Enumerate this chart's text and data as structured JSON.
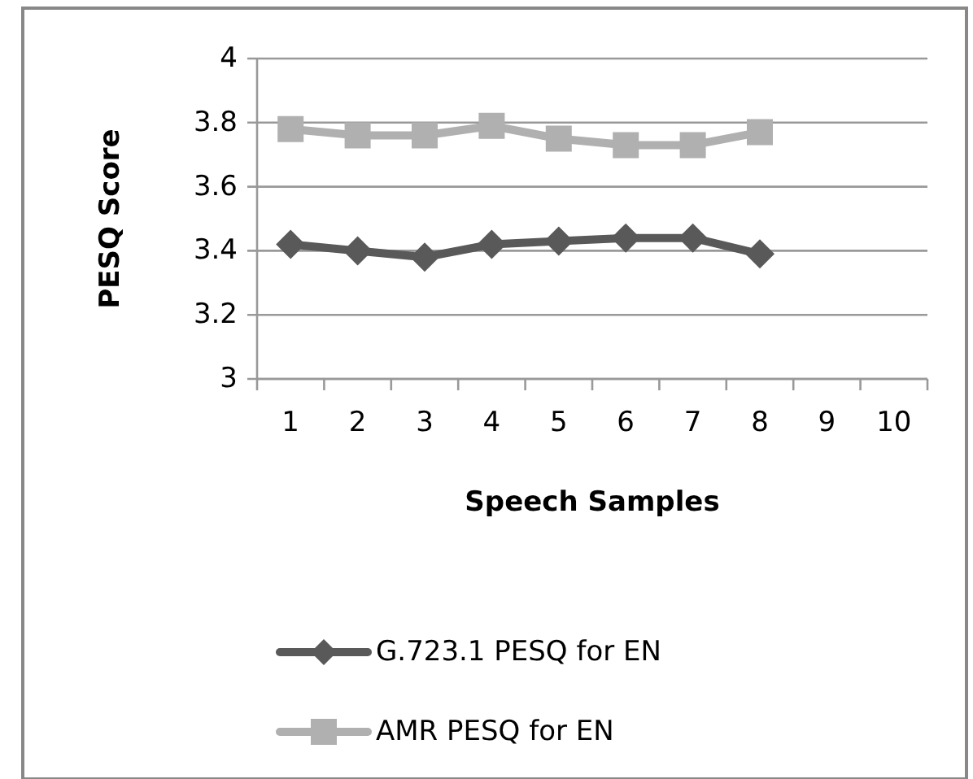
{
  "chart_data": {
    "type": "line",
    "xlabel": "Speech Samples",
    "ylabel": "PESQ Score",
    "categories": [
      "1",
      "2",
      "3",
      "4",
      "5",
      "6",
      "7",
      "8",
      "9",
      "10"
    ],
    "series": [
      {
        "name": "G.723.1 PESQ for EN",
        "color": "#595959",
        "marker": "diamond",
        "values": [
          3.42,
          3.4,
          3.38,
          3.42,
          3.43,
          3.44,
          3.44,
          3.39,
          null,
          null
        ]
      },
      {
        "name": "AMR PESQ for EN",
        "color": "#b0b0b0",
        "marker": "square",
        "values": [
          3.78,
          3.76,
          3.76,
          3.79,
          3.75,
          3.73,
          3.73,
          3.77,
          null,
          null
        ]
      }
    ],
    "ylim": [
      3,
      4
    ],
    "yticks": [
      3,
      3.2,
      3.4,
      3.6,
      3.8,
      4
    ],
    "grid": "y",
    "legend": "bottom"
  }
}
